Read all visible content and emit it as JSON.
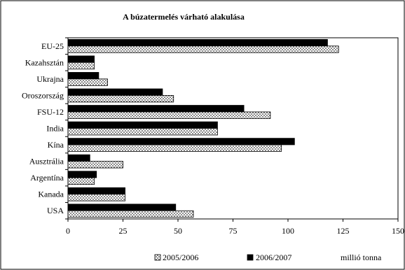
{
  "chart_data": {
    "type": "bar",
    "orientation": "horizontal",
    "title": "A búzatermelés várható alakulása",
    "categories": [
      "EU-25",
      "Kazahsztán",
      "Ukrajna",
      "Oroszország",
      "FSU-12",
      "India",
      "Kína",
      "Ausztrália",
      "Argentína",
      "Kanada",
      "USA"
    ],
    "series": [
      {
        "name": "2005/2006",
        "pattern": "dotted",
        "color": "#000000",
        "values": [
          123,
          12,
          18,
          48,
          92,
          68,
          97,
          25,
          12,
          26,
          57
        ]
      },
      {
        "name": "2006/2007",
        "pattern": "solid",
        "color": "#000000",
        "values": [
          118,
          12,
          14,
          43,
          80,
          68,
          103,
          10,
          13,
          26,
          49
        ]
      }
    ],
    "xlim": [
      0,
      150
    ],
    "xticks": [
      0,
      25,
      50,
      75,
      100,
      125,
      150
    ],
    "unit_label": "millió tonna",
    "legend_position": "bottom",
    "grid": false
  }
}
